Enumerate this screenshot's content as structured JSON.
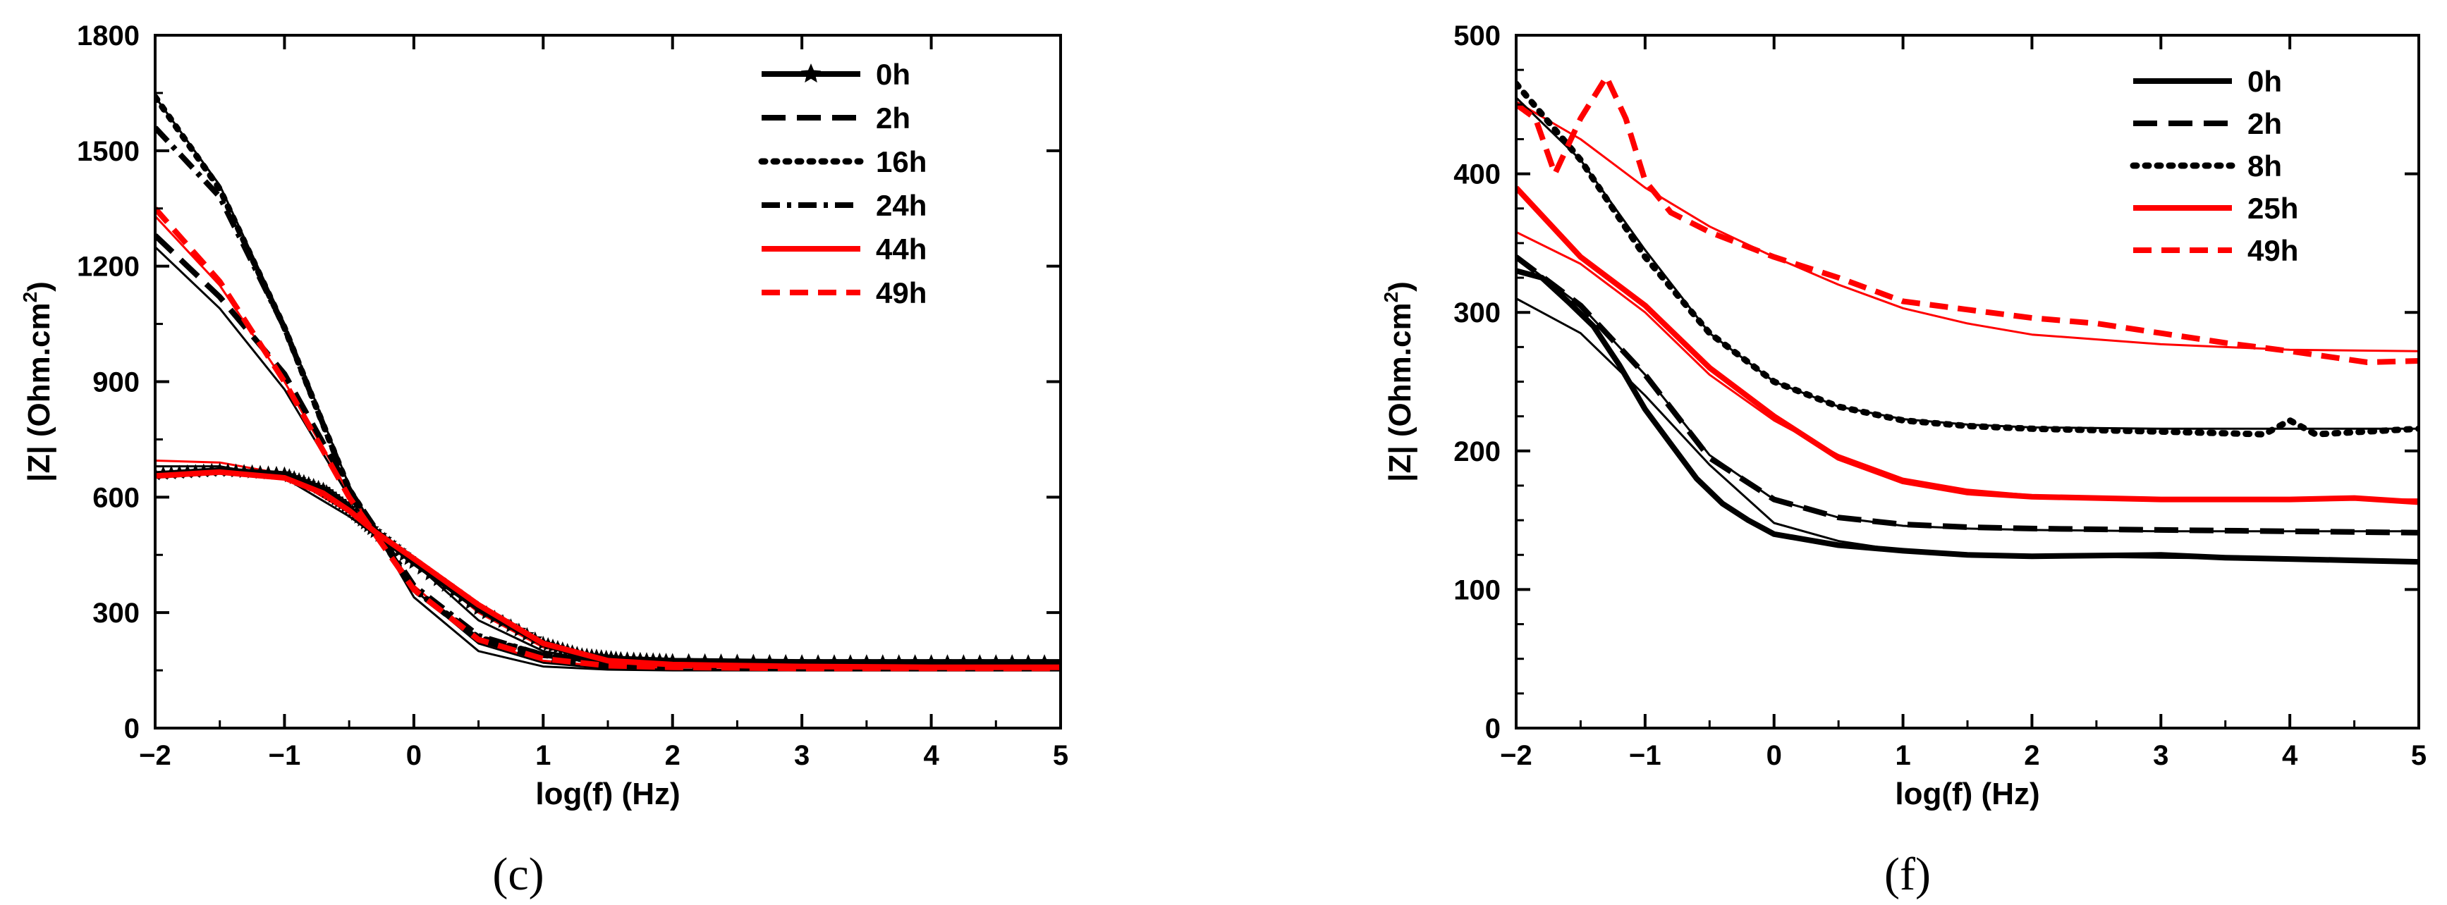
{
  "colors": {
    "black": "#000000",
    "red": "#ff0000"
  },
  "chart_data": [
    {
      "type": "line",
      "panel": "(c)",
      "title": "",
      "xlabel": "log(f)  (Hz)",
      "ylabel": "|Z|  (Ohm.cm",
      "ylabel_sup": "2",
      "ylabel_close": ")",
      "xlim": [
        -2,
        5
      ],
      "ylim": [
        0,
        1800
      ],
      "xticks": [
        -2,
        -1,
        0,
        1,
        2,
        3,
        4,
        5
      ],
      "xtick_labels": [
        "−2",
        "−1",
        "0",
        "1",
        "2",
        "3",
        "4",
        "5"
      ],
      "yticks": [
        0,
        300,
        600,
        900,
        1200,
        1500,
        1800
      ],
      "ytick_labels": [
        "0",
        "300",
        "600",
        "900",
        "1200",
        "1500",
        "1800"
      ],
      "legend_position": "top-right",
      "series": [
        {
          "name": "0h",
          "color": "#000000",
          "style": "solid-star",
          "x": [
            -2,
            -1.5,
            -1,
            -0.7,
            -0.5,
            -0.3,
            0,
            0.5,
            1,
            1.3,
            1.6,
            2,
            3,
            4,
            5
          ],
          "y": [
            660,
            670,
            660,
            620,
            570,
            510,
            430,
            310,
            220,
            190,
            180,
            175,
            172,
            172,
            172
          ]
        },
        {
          "name": "2h",
          "color": "#000000",
          "style": "longdash",
          "x": [
            -2,
            -1.5,
            -1,
            -0.5,
            0,
            0.5,
            1,
            1.5,
            2,
            3,
            4,
            5
          ],
          "y": [
            1280,
            1120,
            920,
            620,
            360,
            230,
            180,
            163,
            160,
            158,
            158,
            158
          ]
        },
        {
          "name": "16h",
          "color": "#000000",
          "style": "dotted",
          "x": [
            -2,
            -1.5,
            -1,
            -0.5,
            0,
            0.5,
            1,
            1.5,
            2,
            3,
            4,
            5
          ],
          "y": [
            1640,
            1400,
            1040,
            620,
            360,
            235,
            190,
            172,
            168,
            165,
            165,
            165
          ]
        },
        {
          "name": "24h",
          "color": "#000000",
          "style": "dashdot",
          "x": [
            -2,
            -1.5,
            -1,
            -0.5,
            0,
            0.5,
            1,
            1.5,
            2,
            3,
            4,
            5
          ],
          "y": [
            1560,
            1380,
            1040,
            620,
            370,
            240,
            190,
            172,
            168,
            165,
            165,
            165
          ]
        },
        {
          "name": "44h",
          "color": "#ff0000",
          "style": "solid",
          "x": [
            -2,
            -1.5,
            -1,
            -0.7,
            -0.5,
            -0.3,
            0,
            0.5,
            1,
            1.5,
            2,
            3,
            4,
            5
          ],
          "y": [
            655,
            665,
            650,
            610,
            565,
            510,
            440,
            320,
            220,
            175,
            165,
            160,
            158,
            158
          ]
        },
        {
          "name": "49h",
          "color": "#ff0000",
          "style": "dashed",
          "x": [
            -2,
            -1.5,
            -1,
            -0.5,
            0,
            0.5,
            1,
            1.5,
            2,
            3,
            4,
            5
          ],
          "y": [
            1350,
            1160,
            900,
            600,
            360,
            230,
            180,
            162,
            158,
            155,
            155,
            155
          ]
        }
      ],
      "fits": [
        {
          "color": "#000000",
          "x": [
            -2,
            -1.5,
            -1,
            -0.5,
            0,
            0.5,
            1,
            1.5,
            2,
            3,
            4,
            5
          ],
          "y": [
            1640,
            1410,
            1050,
            630,
            340,
            200,
            160,
            152,
            150,
            150,
            150,
            150
          ]
        },
        {
          "color": "#000000",
          "x": [
            -2,
            -1.5,
            -1,
            -0.5,
            0,
            0.5,
            1,
            1.5,
            2,
            3,
            4,
            5
          ],
          "y": [
            1250,
            1090,
            880,
            600,
            360,
            220,
            170,
            155,
            152,
            150,
            150,
            150
          ]
        },
        {
          "color": "#000000",
          "x": [
            -2,
            -1.5,
            -1,
            -0.5,
            0,
            0.5,
            1,
            1.5,
            2,
            3,
            4,
            5
          ],
          "y": [
            680,
            680,
            650,
            550,
            430,
            280,
            200,
            170,
            162,
            160,
            160,
            160
          ]
        },
        {
          "color": "#ff0000",
          "x": [
            -2,
            -1.5,
            -1,
            -0.5,
            0,
            0.5,
            1,
            1.5,
            2,
            3,
            4,
            5
          ],
          "y": [
            1330,
            1150,
            900,
            610,
            370,
            225,
            175,
            160,
            158,
            156,
            156,
            156
          ]
        },
        {
          "color": "#ff0000",
          "x": [
            -2,
            -1.5,
            -1,
            -0.5,
            0,
            0.5,
            1,
            1.5,
            2,
            3,
            4,
            5
          ],
          "y": [
            695,
            690,
            660,
            560,
            440,
            300,
            210,
            175,
            165,
            160,
            160,
            160
          ]
        }
      ]
    },
    {
      "type": "line",
      "panel": "(f)",
      "title": "",
      "xlabel": "log(f)  (Hz)",
      "ylabel": "|Z|  (Ohm.cm",
      "ylabel_sup": "2",
      "ylabel_close": ")",
      "xlim": [
        -2,
        5
      ],
      "ylim": [
        0,
        500
      ],
      "xticks": [
        -2,
        -1,
        0,
        1,
        2,
        3,
        4,
        5
      ],
      "xtick_labels": [
        "−2",
        "−1",
        "0",
        "1",
        "2",
        "3",
        "4",
        "5"
      ],
      "yticks": [
        0,
        100,
        200,
        300,
        400,
        500
      ],
      "ytick_labels": [
        "0",
        "100",
        "200",
        "300",
        "400",
        "500"
      ],
      "legend_position": "top-right",
      "series": [
        {
          "name": "0h",
          "color": "#000000",
          "style": "solid",
          "x": [
            -2,
            -1.8,
            -1.6,
            -1.4,
            -1.2,
            -1,
            -0.8,
            -0.6,
            -0.4,
            -0.2,
            0,
            0.5,
            1,
            1.5,
            2,
            3,
            3.5,
            4,
            4.5,
            5
          ],
          "y": [
            330,
            325,
            308,
            290,
            262,
            230,
            205,
            180,
            162,
            150,
            140,
            132,
            128,
            125,
            124,
            125,
            123,
            122,
            121,
            120
          ]
        },
        {
          "name": "2h",
          "color": "#000000",
          "style": "longdash",
          "x": [
            -2,
            -1.5,
            -1,
            -0.5,
            0,
            0.5,
            1,
            1.5,
            2,
            3,
            4,
            5
          ],
          "y": [
            340,
            305,
            255,
            195,
            165,
            152,
            147,
            145,
            144,
            143,
            142,
            141
          ]
        },
        {
          "name": "8h",
          "color": "#000000",
          "style": "dotted",
          "x": [
            -2,
            -1.5,
            -1,
            -0.5,
            0,
            0.5,
            1,
            1.5,
            2,
            3,
            3.8,
            4,
            4.2,
            5
          ],
          "y": [
            465,
            410,
            340,
            285,
            250,
            232,
            222,
            218,
            216,
            214,
            212,
            222,
            212,
            216
          ]
        },
        {
          "name": "25h",
          "color": "#ff0000",
          "style": "solid",
          "x": [
            -2,
            -1.5,
            -1,
            -0.5,
            0,
            0.5,
            1,
            1.5,
            2,
            3,
            4,
            4.5,
            5
          ],
          "y": [
            390,
            340,
            305,
            260,
            225,
            195,
            178,
            170,
            167,
            165,
            165,
            166,
            163
          ]
        },
        {
          "name": "49h",
          "color": "#ff0000",
          "style": "dashed",
          "x": [
            -2,
            -1.85,
            -1.7,
            -1.5,
            -1.3,
            -1.15,
            -1,
            -0.8,
            -0.5,
            0,
            0.5,
            1,
            1.5,
            2,
            2.5,
            3,
            3.5,
            4,
            4.3,
            4.6,
            5
          ],
          "y": [
            450,
            440,
            400,
            440,
            470,
            440,
            395,
            372,
            358,
            340,
            325,
            308,
            302,
            296,
            292,
            285,
            278,
            272,
            268,
            264,
            265
          ]
        }
      ],
      "fits": [
        {
          "color": "#ff0000",
          "x": [
            -2,
            -1.5,
            -1,
            -0.5,
            0,
            0.5,
            1,
            1.5,
            2,
            3,
            4,
            5
          ],
          "y": [
            452,
            425,
            390,
            362,
            340,
            320,
            303,
            292,
            284,
            277,
            273,
            272
          ]
        },
        {
          "color": "#000000",
          "x": [
            -2,
            -1.5,
            -1,
            -0.5,
            0,
            0.5,
            1,
            1.5,
            2,
            3,
            4,
            5
          ],
          "y": [
            455,
            410,
            345,
            285,
            250,
            232,
            223,
            219,
            217,
            216,
            216,
            216
          ]
        },
        {
          "color": "#000000",
          "x": [
            -2,
            -1.5,
            -1,
            -0.5,
            0,
            0.5,
            1,
            1.5,
            2,
            3,
            4,
            5
          ],
          "y": [
            340,
            305,
            255,
            197,
            165,
            152,
            146,
            144,
            143,
            142,
            142,
            142
          ]
        },
        {
          "color": "#000000",
          "x": [
            -2,
            -1.5,
            -1,
            -0.5,
            0,
            0.5,
            1,
            1.5,
            2,
            3,
            4,
            5
          ],
          "y": [
            310,
            285,
            240,
            190,
            148,
            135,
            128,
            125,
            124,
            123,
            122,
            121
          ]
        },
        {
          "color": "#ff0000",
          "x": [
            -2,
            -1.5,
            -1,
            -0.5,
            0,
            0.5,
            1,
            1.5,
            2,
            3,
            4,
            5
          ],
          "y": [
            358,
            335,
            300,
            255,
            222,
            197,
            180,
            172,
            168,
            166,
            165,
            165
          ]
        }
      ]
    }
  ]
}
